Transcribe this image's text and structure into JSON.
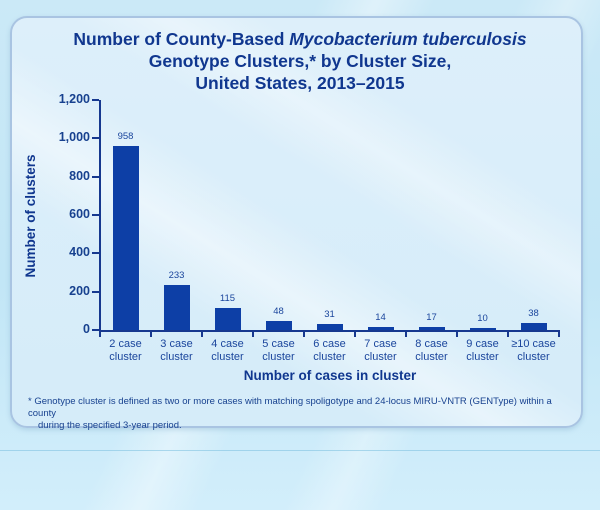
{
  "slide": {
    "title": {
      "line1_regular": "Number of County-Based ",
      "line1_italic": "Mycobacterium tuberculosis",
      "line2": "Genotype Clusters,* by Cluster Size,",
      "line3": "United States, 2013–2015"
    },
    "footnote": {
      "line1": "* Genotype cluster is defined as two or more cases with matching spoligotype and 24-locus MIRU-VNTR (GENType) within a county",
      "line2": "during the specified 3-year period."
    }
  },
  "chart_data": {
    "type": "bar",
    "title": "Number of County-Based Mycobacterium tuberculosis Genotype Clusters,* by Cluster Size, United States, 2013–2015",
    "categories": [
      "2 case cluster",
      "3 case cluster",
      "4 case cluster",
      "5 case cluster",
      "6 case cluster",
      "7 case cluster",
      "8 case cluster",
      "9 case cluster",
      "≥10 case cluster"
    ],
    "category_line1": [
      "2 case",
      "3 case",
      "4 case",
      "5 case",
      "6 case",
      "7 case",
      "8 case",
      "9 case",
      "≥10 case"
    ],
    "category_line2": "cluster",
    "values": [
      958,
      233,
      115,
      48,
      31,
      14,
      17,
      10,
      38
    ],
    "xlabel": "Number of cases in cluster",
    "ylabel": "Number of clusters",
    "ylim": [
      0,
      1200
    ],
    "ytick_values": [
      0,
      200,
      400,
      600,
      800,
      1000,
      1200
    ],
    "ytick_labels": [
      "0",
      "200",
      "400",
      "600",
      "800",
      "1,000",
      "1,200"
    ],
    "grid": false,
    "legend": "none",
    "bar_color": "#0d3fa6"
  },
  "colors": {
    "page_background": "#c6e8f6",
    "panel_background": "#d9edf9",
    "panel_border": "#a9c4e2",
    "bar": "#0d3fa6",
    "text_navy": "#10378f",
    "axis": "#16388f"
  }
}
